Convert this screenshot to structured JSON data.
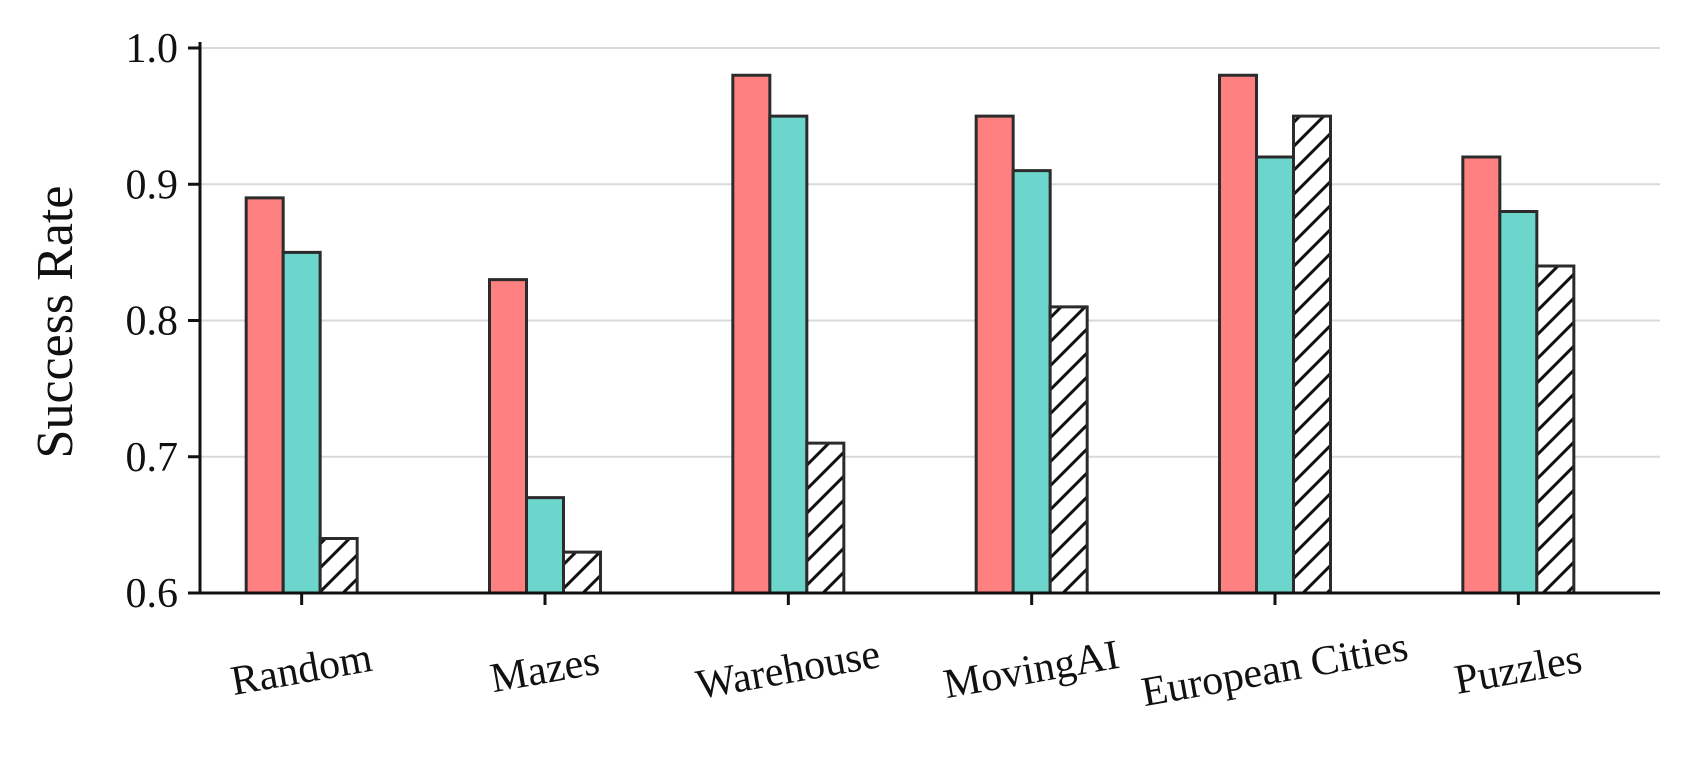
{
  "chart_data": {
    "type": "bar",
    "title": "",
    "xlabel": "",
    "ylabel": "Success Rate",
    "ylim": [
      0.6,
      1.0
    ],
    "yticks": [
      "0.6",
      "0.7",
      "0.8",
      "0.9",
      "1.0"
    ],
    "grid": "horizontal",
    "legend": "none",
    "categories": [
      "Random",
      "Mazes",
      "Warehouse",
      "MovingAI",
      "European Cities",
      "Puzzles"
    ],
    "series": [
      {
        "values": [
          0.89,
          0.83,
          0.98,
          0.95,
          0.98,
          0.92
        ],
        "color": "#ff8080",
        "pattern": "solid"
      },
      {
        "values": [
          0.85,
          0.67,
          0.95,
          0.91,
          0.92,
          0.88
        ],
        "color": "#6dd6cc",
        "pattern": "solid"
      },
      {
        "values": [
          0.64,
          0.63,
          0.71,
          0.81,
          0.95,
          0.84
        ],
        "color": "#ffffff",
        "pattern": "hatch"
      }
    ]
  }
}
